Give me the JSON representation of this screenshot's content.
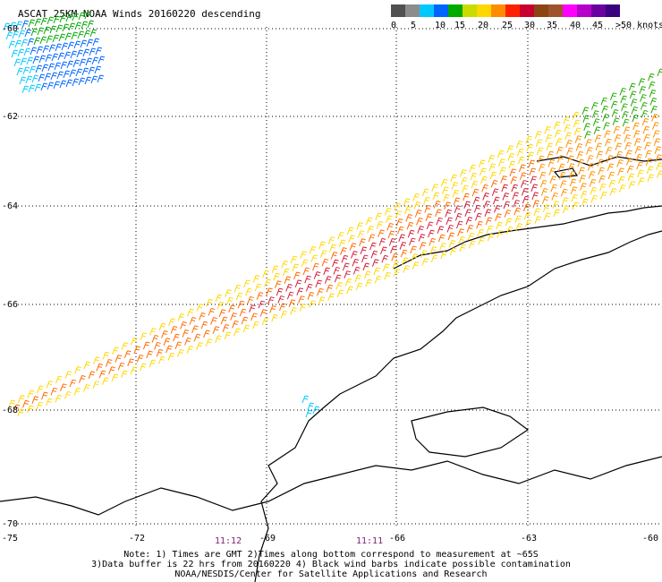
{
  "title": "ASCAT 25KM NOAA Winds 20160220 descending",
  "legend": {
    "unit": "knots",
    "labels": [
      "0",
      "5",
      "10",
      "15",
      "20",
      "25",
      "30",
      "35",
      "40",
      "45",
      ">50 knots"
    ],
    "colors": [
      "#505050",
      "#8c8c8c",
      "#00c8ff",
      "#0064ff",
      "#00aa00",
      "#c8dc00",
      "#ffd700",
      "#ff8c00",
      "#ff2000",
      "#c80030",
      "#8b4513",
      "#a0522d",
      "#ff00ff",
      "#b400c8",
      "#6a00a0",
      "#3a0080"
    ]
  },
  "axes": {
    "lon_labels": [
      "-75",
      "-72",
      "-69",
      "-66",
      "-63",
      "-60"
    ],
    "lat_labels": [
      "-60",
      "-62",
      "-64",
      "-66",
      "-68",
      "-70"
    ]
  },
  "times": [
    {
      "label": "11:12"
    },
    {
      "label": "11:11"
    }
  ],
  "notes": {
    "line1": "Note: 1) Times are GMT 2)Times along bottom correspond to measurement at ~65S",
    "line2": "3)Data buffer is 22 hrs from 20160220 4) Black wind barbs indicate possible contamination",
    "line3": "NOAA/NESDIS/Center for Satellite Applications and Research"
  },
  "chart_data": {
    "type": "map",
    "title": "ASCAT 25KM NOAA Winds 20160220 descending",
    "lon_range": [
      -75,
      -60
    ],
    "lat_range": [
      -70,
      -60
    ],
    "grid": "dotted",
    "swaths": [
      {
        "region": "main diagonal swath",
        "speed_kt_range": [
          20,
          35
        ]
      },
      {
        "region": "north-west corner",
        "speed_kt_range": [
          5,
          20
        ]
      },
      {
        "region": "north-east edge",
        "speed_kt_range": [
          15,
          25
        ]
      }
    ]
  }
}
